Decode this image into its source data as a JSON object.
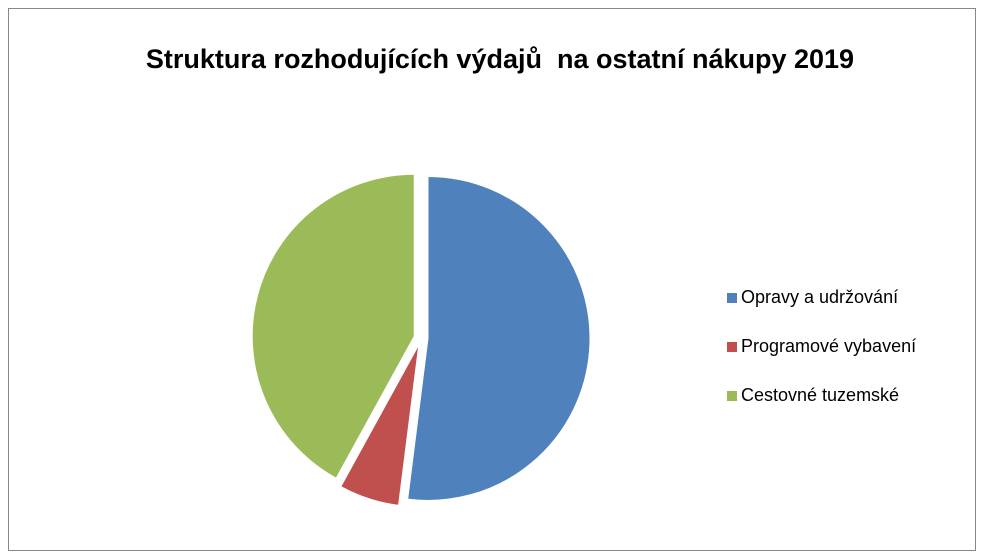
{
  "chart_data": {
    "type": "pie",
    "title": "Struktura rozhodujících výdajů  na ostatní nákupy 2019",
    "categories": [
      "Opravy a udržování",
      "Programové vybavení",
      "Cestovné tuzemské"
    ],
    "values": [
      52,
      6,
      42
    ],
    "colors": [
      "#4f81bd",
      "#c0504d",
      "#9bbb59"
    ],
    "legend": "right"
  }
}
